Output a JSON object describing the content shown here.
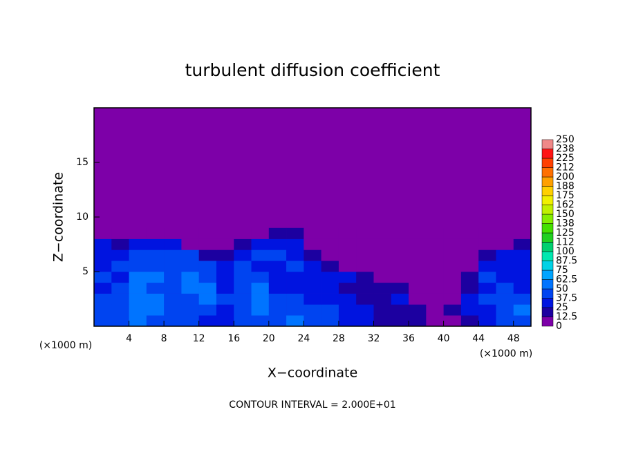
{
  "chart_data": {
    "type": "heatmap",
    "title": "turbulent diffusion coefficient",
    "xlabel": "X−coordinate",
    "ylabel": "Z−coordinate",
    "x_unit_left": "(×1000 m)",
    "x_unit_right": "(×1000 m)",
    "note": "CONTOUR INTERVAL = 2.000E+01",
    "xlim": [
      0,
      50
    ],
    "ylim": [
      0,
      20
    ],
    "xticks": [
      4,
      8,
      12,
      16,
      20,
      24,
      28,
      32,
      36,
      40,
      44,
      48
    ],
    "yticks": [
      5,
      10,
      15
    ],
    "x_edges": [
      0,
      2,
      4,
      6,
      8,
      10,
      12,
      14,
      16,
      18,
      20,
      22,
      24,
      26,
      28,
      30,
      32,
      34,
      36,
      38,
      40,
      42,
      44,
      46,
      48,
      50
    ],
    "z_edges": [
      0,
      1,
      2,
      3,
      4,
      5,
      6,
      7,
      8,
      9
    ],
    "values": [
      [
        40,
        45,
        50,
        45,
        40,
        45,
        35,
        30,
        40,
        45,
        40,
        50,
        45,
        45,
        35,
        30,
        20,
        20,
        15,
        10,
        10,
        20,
        30,
        40,
        45
      ],
      [
        45,
        40,
        55,
        50,
        45,
        40,
        40,
        35,
        45,
        50,
        45,
        40,
        40,
        45,
        30,
        25,
        20,
        15,
        15,
        10,
        15,
        30,
        35,
        45,
        50
      ],
      [
        40,
        45,
        60,
        50,
        40,
        45,
        50,
        40,
        45,
        55,
        40,
        45,
        30,
        30,
        25,
        20,
        20,
        25,
        10,
        5,
        10,
        25,
        40,
        45,
        40
      ],
      [
        35,
        40,
        55,
        45,
        40,
        50,
        50,
        35,
        40,
        50,
        35,
        30,
        30,
        25,
        20,
        20,
        15,
        20,
        5,
        5,
        5,
        20,
        35,
        40,
        35
      ],
      [
        40,
        35,
        50,
        50,
        45,
        55,
        45,
        35,
        40,
        45,
        30,
        35,
        30,
        25,
        25,
        15,
        10,
        5,
        0,
        0,
        5,
        15,
        40,
        35,
        30
      ],
      [
        35,
        40,
        45,
        45,
        40,
        45,
        40,
        35,
        40,
        35,
        35,
        40,
        25,
        20,
        10,
        5,
        0,
        0,
        0,
        0,
        0,
        10,
        30,
        30,
        35
      ],
      [
        30,
        35,
        40,
        40,
        45,
        40,
        20,
        20,
        35,
        40,
        40,
        30,
        15,
        5,
        0,
        0,
        0,
        0,
        0,
        0,
        0,
        5,
        20,
        25,
        30
      ],
      [
        25,
        20,
        30,
        35,
        30,
        10,
        0,
        5,
        20,
        30,
        25,
        25,
        5,
        0,
        0,
        0,
        0,
        0,
        0,
        0,
        0,
        0,
        0,
        10,
        20
      ],
      [
        0,
        0,
        0,
        0,
        0,
        0,
        0,
        0,
        0,
        5,
        15,
        15,
        0,
        0,
        0,
        0,
        0,
        0,
        0,
        0,
        0,
        0,
        0,
        0,
        0
      ]
    ],
    "levels": [
      0,
      12.5,
      25,
      37.5,
      50,
      62.5,
      75,
      87.5,
      100,
      {
        "value": 112.5,
        "label": "112"
      },
      125,
      {
        "value": 137.5,
        "label": "138"
      },
      150,
      {
        "value": 162.5,
        "label": "162"
      },
      175,
      {
        "value": 187.5,
        "label": "188"
      },
      200,
      {
        "value": 212.5,
        "label": "212"
      },
      225,
      {
        "value": 237.5,
        "label": "238"
      },
      250
    ],
    "colors": [
      "#7d00a8",
      "#1c00a0",
      "#0014e0",
      "#0044f0",
      "#0074ff",
      "#00a4ff",
      "#00d2e6",
      "#00e8b0",
      "#00d070",
      "#20d020",
      "#44e000",
      "#84ee00",
      "#c0f000",
      "#f0f000",
      "#ffd000",
      "#ffa000",
      "#ff7000",
      "#ff4000",
      "#ff1414",
      "#f08888"
    ]
  }
}
